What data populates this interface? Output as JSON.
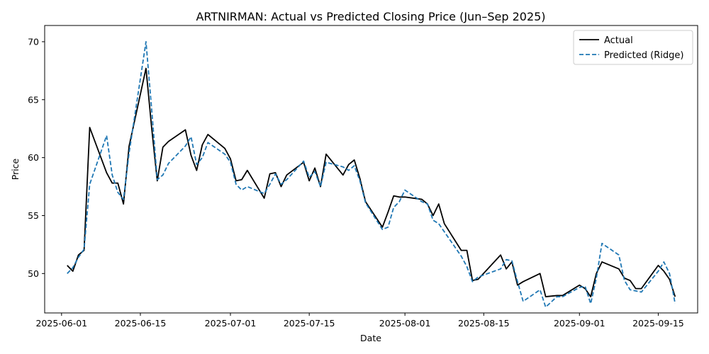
{
  "chart_data": {
    "type": "line",
    "title": "ARTNIRMAN: Actual vs Predicted Closing Price (Jun–Sep 2025)",
    "xlabel": "Date",
    "ylabel": "Price",
    "xlim": [
      "2025-05-29",
      "2025-09-22"
    ],
    "ylim": [
      46.6,
      71.4
    ],
    "x_ticks": [
      "2025-06-01",
      "2025-06-15",
      "2025-07-01",
      "2025-07-15",
      "2025-08-01",
      "2025-08-15",
      "2025-09-01",
      "2025-09-15"
    ],
    "y_ticks": [
      50,
      55,
      60,
      65,
      70
    ],
    "grid": false,
    "legend_position": "top-right",
    "x": [
      "2025-06-02",
      "2025-06-03",
      "2025-06-04",
      "2025-06-05",
      "2025-06-06",
      "2025-06-09",
      "2025-06-10",
      "2025-06-11",
      "2025-06-12",
      "2025-06-13",
      "2025-06-16",
      "2025-06-17",
      "2025-06-18",
      "2025-06-19",
      "2025-06-20",
      "2025-06-23",
      "2025-06-24",
      "2025-06-25",
      "2025-06-26",
      "2025-06-27",
      "2025-06-30",
      "2025-07-01",
      "2025-07-02",
      "2025-07-03",
      "2025-07-04",
      "2025-07-07",
      "2025-07-08",
      "2025-07-09",
      "2025-07-10",
      "2025-07-11",
      "2025-07-14",
      "2025-07-15",
      "2025-07-16",
      "2025-07-17",
      "2025-07-18",
      "2025-07-21",
      "2025-07-22",
      "2025-07-23",
      "2025-07-24",
      "2025-07-25",
      "2025-07-28",
      "2025-07-29",
      "2025-07-30",
      "2025-07-31",
      "2025-08-01",
      "2025-08-04",
      "2025-08-05",
      "2025-08-06",
      "2025-08-07",
      "2025-08-08",
      "2025-08-11",
      "2025-08-12",
      "2025-08-13",
      "2025-08-14",
      "2025-08-18",
      "2025-08-19",
      "2025-08-20",
      "2025-08-21",
      "2025-08-22",
      "2025-08-25",
      "2025-08-26",
      "2025-08-28",
      "2025-08-29",
      "2025-09-01",
      "2025-09-02",
      "2025-09-03",
      "2025-09-04",
      "2025-09-05",
      "2025-09-08",
      "2025-09-09",
      "2025-09-10",
      "2025-09-11",
      "2025-09-12",
      "2025-09-15",
      "2025-09-16",
      "2025-09-17",
      "2025-09-18"
    ],
    "series": [
      {
        "name": "Actual",
        "color": "#000000",
        "style": "solid",
        "values": [
          50.7,
          50.2,
          51.6,
          52.0,
          62.6,
          58.7,
          57.8,
          57.8,
          56.0,
          61.0,
          67.7,
          62.6,
          58.0,
          60.9,
          61.4,
          62.4,
          60.2,
          58.9,
          61.1,
          62.0,
          60.8,
          59.9,
          58.0,
          58.1,
          58.9,
          56.5,
          58.6,
          58.7,
          57.5,
          58.5,
          59.6,
          58.0,
          59.1,
          57.5,
          60.3,
          58.5,
          59.4,
          59.8,
          58.2,
          56.2,
          54.0,
          55.3,
          56.7,
          56.6,
          56.6,
          56.4,
          56.0,
          55.0,
          56.0,
          54.3,
          52.0,
          52.0,
          49.4,
          49.5,
          51.6,
          50.4,
          51.0,
          49.0,
          49.3,
          50.0,
          48.0,
          48.1,
          48.1,
          49.0,
          48.7,
          48.0,
          50.0,
          51.0,
          50.4,
          49.6,
          49.4,
          48.7,
          48.7,
          50.7,
          50.2,
          49.5,
          48.0
        ]
      },
      {
        "name": "Predicted (Ridge)",
        "color": "#1f77b4",
        "style": "dashed",
        "values": [
          50.0,
          50.5,
          51.4,
          52.1,
          57.7,
          61.9,
          58.5,
          57.0,
          56.4,
          60.4,
          70.0,
          64.2,
          58.1,
          58.5,
          59.5,
          61.0,
          61.8,
          59.4,
          60.0,
          61.3,
          60.3,
          59.6,
          57.7,
          57.2,
          57.5,
          56.9,
          57.7,
          58.6,
          57.7,
          58.1,
          59.7,
          58.3,
          58.8,
          57.5,
          59.6,
          59.2,
          58.9,
          59.3,
          58.0,
          56.1,
          53.8,
          54.0,
          55.7,
          56.2,
          57.2,
          56.2,
          56.0,
          54.6,
          54.3,
          53.6,
          51.5,
          50.6,
          49.3,
          49.7,
          50.4,
          51.2,
          51.1,
          49.3,
          47.6,
          48.6,
          47.1,
          48.0,
          48.0,
          48.8,
          48.9,
          47.4,
          49.6,
          52.6,
          51.6,
          49.4,
          48.6,
          48.5,
          48.4,
          50.2,
          51.0,
          50.0,
          47.4
        ]
      }
    ]
  }
}
